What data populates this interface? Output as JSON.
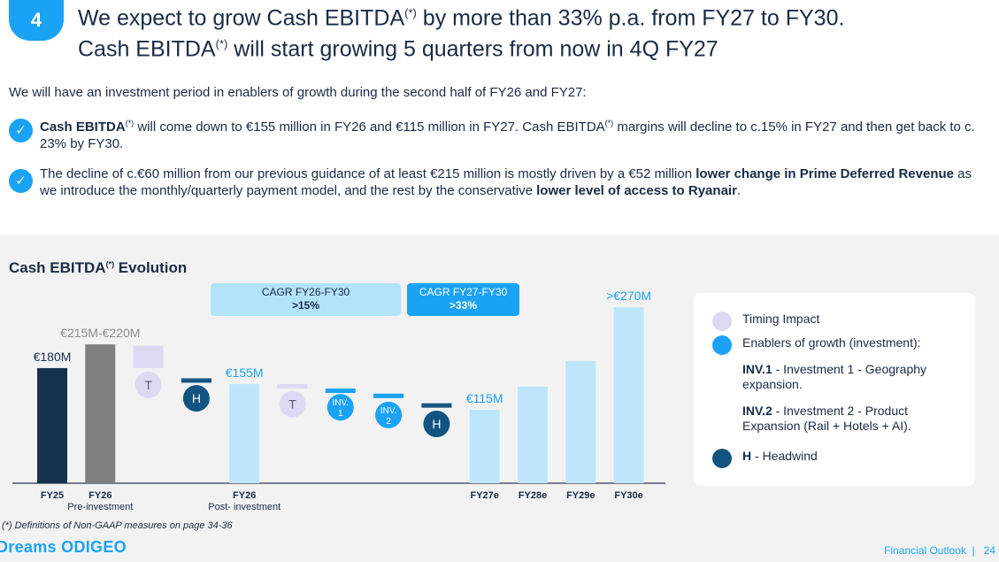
{
  "header": {
    "badge": "4",
    "line1_a": "We expect to grow Cash EBITDA",
    "line1_sup": "(*)",
    "line1_b": " by more than 33% p.a. from FY27 to FY30.",
    "line2_a": "Cash EBITDA",
    "line2_sup": "(*)",
    "line2_b": " will start growing 5 quarters from now in 4Q FY27"
  },
  "intro": "We will have an investment period in enablers of growth during the second half of FY26 and FY27:",
  "bullets": [
    {
      "b1": "Cash EBITDA",
      "sup1": "(*)",
      "t1": " will come down to €155 million in FY26 and €115 million in FY27. Cash EBITDA",
      "sup2": "(*)",
      "t2": " margins will decline to c.15% in FY27 and then get back to c. 23% by FY30."
    },
    {
      "t1": "The decline of c.€60 million from our previous guidance of at least €215 million is mostly driven by a €52 million ",
      "b1": "lower change in Prime Deferred Revenue",
      "t2": " as we introduce the monthly/quarterly payment model, and the rest by the conservative ",
      "b2": "lower level of access to Ryanair",
      "t3": "."
    }
  ],
  "chart_title": "Cash EBITDA",
  "chart_title_sup": "(*)",
  "chart_title_rest": " Evolution",
  "cagr": [
    {
      "label": "CAGR FY26-FY30",
      "value": ">15%"
    },
    {
      "label": "CAGR FY27-FY30",
      "value": ">33%"
    }
  ],
  "colors": {
    "dark_navy": "#16304f",
    "grey": "#7f7f7f",
    "light_blue": "#bde6fb",
    "lavender": "#dcdaf3",
    "blue": "#1aa3f5",
    "headwind": "#12547f",
    "accent": "#1aa3f5"
  },
  "chart_data": {
    "type": "bar",
    "title": "Cash EBITDA(*) Evolution",
    "units": "€M",
    "ylim": [
      0,
      285
    ],
    "bars": [
      {
        "kind": "total",
        "x_label": "FY25",
        "sub_label": "",
        "low": 0,
        "high": 180,
        "color": "dark_navy",
        "value_label": "€180M"
      },
      {
        "kind": "total",
        "x_label": "FY26",
        "sub_label": "Pre-investment",
        "low": 0,
        "high": 217,
        "color": "grey",
        "value_label": "€215M-€220M"
      },
      {
        "kind": "step",
        "x_label": "",
        "sub_label": "",
        "low": 180,
        "high": 215,
        "color": "lavender",
        "badge": "T",
        "badge_color": "lavender",
        "badge_text_color": "#5a5a6e"
      },
      {
        "kind": "step",
        "x_label": "",
        "sub_label": "",
        "low": 159,
        "high": 164,
        "color": "headwind",
        "badge": "H",
        "badge_color": "headwind",
        "badge_text_color": "#ffffff"
      },
      {
        "kind": "total",
        "x_label": "FY26",
        "sub_label": "Post- investment",
        "low": 0,
        "high": 155,
        "color": "light_blue",
        "value_label": "€155M"
      },
      {
        "kind": "step",
        "x_label": "",
        "sub_label": "",
        "low": 150,
        "high": 155,
        "color": "lavender",
        "badge": "T",
        "badge_color": "lavender",
        "badge_text_color": "#5a5a6e"
      },
      {
        "kind": "step",
        "x_label": "",
        "sub_label": "",
        "low": 145,
        "high": 148,
        "color": "blue",
        "badge": "INV.\n1",
        "badge_color": "blue",
        "badge_text_color": "#ffffff"
      },
      {
        "kind": "step",
        "x_label": "",
        "sub_label": "",
        "low": 133,
        "high": 140,
        "color": "blue",
        "badge": "INV.\n2",
        "badge_color": "blue",
        "badge_text_color": "#ffffff"
      },
      {
        "kind": "step",
        "x_label": "",
        "sub_label": "",
        "low": 119,
        "high": 125,
        "color": "headwind",
        "badge": "H",
        "badge_color": "headwind",
        "badge_text_color": "#ffffff"
      },
      {
        "kind": "total",
        "x_label": "FY27e",
        "sub_label": "",
        "low": 0,
        "high": 115,
        "color": "light_blue",
        "value_label": "€115M"
      },
      {
        "kind": "total",
        "x_label": "FY28e",
        "sub_label": "",
        "low": 0,
        "high": 151,
        "color": "light_blue",
        "value_label": ""
      },
      {
        "kind": "total",
        "x_label": "FY29e",
        "sub_label": "",
        "low": 0,
        "high": 191,
        "color": "light_blue",
        "value_label": ""
      },
      {
        "kind": "total",
        "x_label": "FY30e",
        "sub_label": "",
        "low": 0,
        "high": 275,
        "color": "light_blue",
        "value_label": ">€270M"
      }
    ]
  },
  "legend": {
    "timing": "Timing Impact",
    "enablers": "Enablers of growth (investment):",
    "inv1_b": "INV.1",
    "inv1_t": " - Investment 1 - Geography expansion.",
    "inv2_b": "INV.2",
    "inv2_t": " - Investment 2 - Product Expansion (Rail + Hotels + AI).",
    "headwind_b": "H",
    "headwind_t": " - Headwind"
  },
  "footnote": "(*) Definitions of Non-GAAP measures on page 34-36",
  "logo": "Dreams ODIGEO",
  "footer_section": "Financial Outlook",
  "footer_sep": "|",
  "page_number": "24"
}
